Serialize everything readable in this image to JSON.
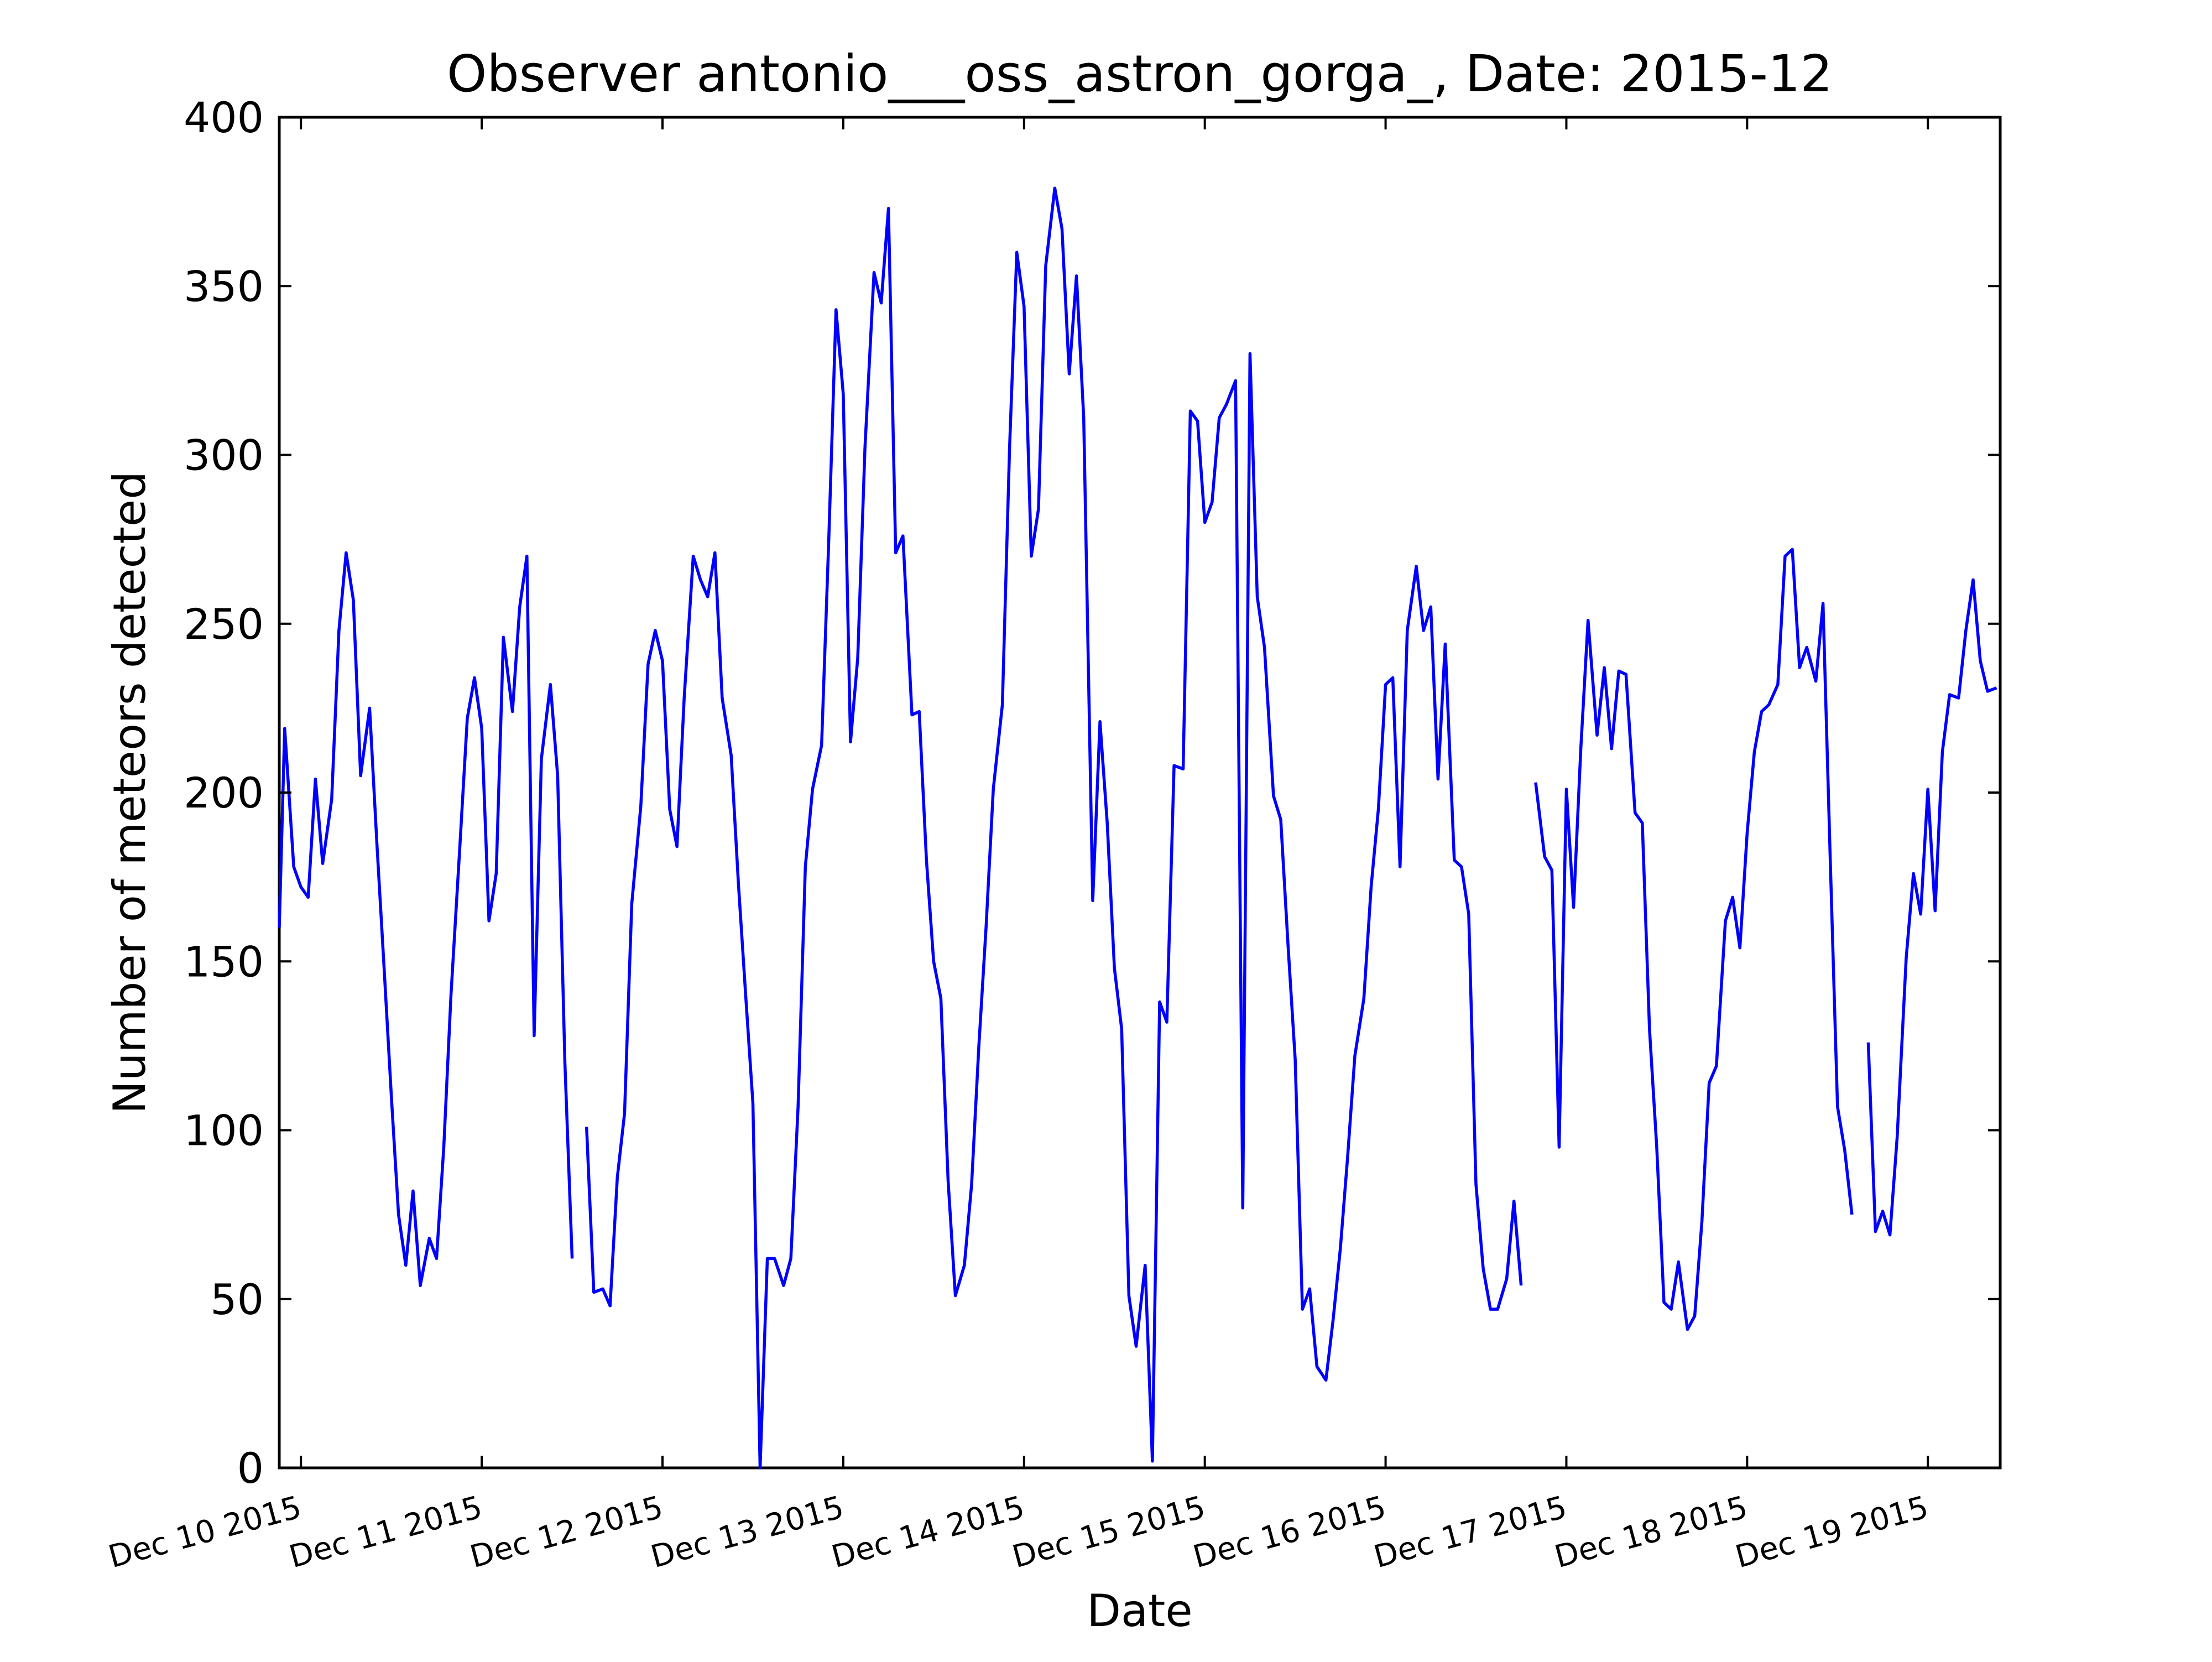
{
  "chart_data": {
    "type": "line",
    "title": "Observer antonio___oss_astron_gorga_, Date: 2015-12",
    "xlabel": "Date",
    "ylabel": "Number of meteors detected",
    "ylim": [
      0,
      400
    ],
    "xlim": [
      -0.12,
      9.4
    ],
    "x_unit": "days after Dec 10 2015 00:00",
    "yticks": [
      0,
      50,
      100,
      150,
      200,
      250,
      300,
      350,
      400
    ],
    "xticks": [
      {
        "value": 0,
        "label": "Dec 10 2015"
      },
      {
        "value": 1,
        "label": "Dec 11 2015"
      },
      {
        "value": 2,
        "label": "Dec 12 2015"
      },
      {
        "value": 3,
        "label": "Dec 13 2015"
      },
      {
        "value": 4,
        "label": "Dec 14 2015"
      },
      {
        "value": 5,
        "label": "Dec 15 2015"
      },
      {
        "value": 6,
        "label": "Dec 16 2015"
      },
      {
        "value": 7,
        "label": "Dec 17 2015"
      },
      {
        "value": 8,
        "label": "Dec 18 2015"
      },
      {
        "value": 9,
        "label": "Dec 19 2015"
      }
    ],
    "grid": false,
    "line_color": "#0000ff",
    "series": [
      {
        "segments": [
          [
            [
              -0.12,
              160
            ],
            [
              -0.09,
              219
            ],
            [
              -0.04,
              178
            ],
            [
              0.0,
              172
            ],
            [
              0.04,
              169
            ],
            [
              0.08,
              204
            ],
            [
              0.12,
              179
            ],
            [
              0.17,
              198
            ],
            [
              0.21,
              248
            ],
            [
              0.25,
              271
            ],
            [
              0.29,
              257
            ],
            [
              0.33,
              205
            ],
            [
              0.38,
              225
            ],
            [
              0.42,
              185
            ],
            [
              0.46,
              148
            ],
            [
              0.5,
              110
            ],
            [
              0.54,
              75
            ],
            [
              0.58,
              60
            ],
            [
              0.62,
              82
            ],
            [
              0.66,
              54
            ],
            [
              0.71,
              68
            ],
            [
              0.75,
              62
            ],
            [
              0.79,
              95
            ],
            [
              0.83,
              140
            ],
            [
              0.88,
              185
            ],
            [
              0.92,
              222
            ],
            [
              0.96,
              234
            ],
            [
              1.0,
              219
            ],
            [
              1.04,
              162
            ],
            [
              1.08,
              176
            ],
            [
              1.12,
              246
            ],
            [
              1.17,
              224
            ],
            [
              1.21,
              255
            ],
            [
              1.25,
              270
            ],
            [
              1.29,
              128
            ],
            [
              1.33,
              210
            ],
            [
              1.38,
              232
            ],
            [
              1.42,
              205
            ],
            [
              1.46,
              120
            ],
            [
              1.5,
              62
            ]
          ],
          [
            [
              1.58,
              101
            ],
            [
              1.62,
              52
            ],
            [
              1.67,
              53
            ],
            [
              1.71,
              48
            ],
            [
              1.75,
              86
            ],
            [
              1.79,
              105
            ],
            [
              1.83,
              167
            ],
            [
              1.88,
              196
            ],
            [
              1.92,
              238
            ],
            [
              1.96,
              248
            ],
            [
              2.0,
              239
            ],
            [
              2.04,
              195
            ],
            [
              2.08,
              184
            ],
            [
              2.12,
              228
            ],
            [
              2.17,
              270
            ],
            [
              2.21,
              263
            ],
            [
              2.25,
              258
            ],
            [
              2.29,
              271
            ],
            [
              2.33,
              228
            ],
            [
              2.38,
              211
            ],
            [
              2.42,
              173
            ],
            [
              2.46,
              140
            ],
            [
              2.5,
              108
            ],
            [
              2.54,
              0
            ],
            [
              2.58,
              62
            ],
            [
              2.62,
              62
            ],
            [
              2.67,
              54
            ],
            [
              2.71,
              62
            ],
            [
              2.75,
              107
            ],
            [
              2.79,
              178
            ],
            [
              2.83,
              201
            ],
            [
              2.88,
              214
            ],
            [
              2.92,
              275
            ],
            [
              2.96,
              343
            ],
            [
              3.0,
              318
            ],
            [
              3.04,
              215
            ],
            [
              3.08,
              240
            ],
            [
              3.12,
              302
            ],
            [
              3.17,
              354
            ],
            [
              3.21,
              345
            ],
            [
              3.25,
              373
            ],
            [
              3.29,
              271
            ],
            [
              3.33,
              276
            ],
            [
              3.38,
              223
            ],
            [
              3.42,
              224
            ],
            [
              3.46,
              180
            ],
            [
              3.5,
              150
            ],
            [
              3.54,
              139
            ],
            [
              3.58,
              85
            ],
            [
              3.62,
              51
            ],
            [
              3.67,
              60
            ],
            [
              3.71,
              84
            ],
            [
              3.75,
              125
            ],
            [
              3.79,
              160
            ],
            [
              3.83,
              201
            ],
            [
              3.88,
              226
            ],
            [
              3.92,
              302
            ],
            [
              3.96,
              360
            ],
            [
              4.0,
              344
            ],
            [
              4.04,
              270
            ],
            [
              4.08,
              284
            ],
            [
              4.12,
              356
            ],
            [
              4.17,
              379
            ],
            [
              4.21,
              367
            ],
            [
              4.25,
              324
            ],
            [
              4.29,
              353
            ],
            [
              4.33,
              311
            ],
            [
              4.38,
              168
            ],
            [
              4.42,
              221
            ],
            [
              4.46,
              191
            ],
            [
              4.5,
              148
            ],
            [
              4.54,
              130
            ],
            [
              4.58,
              51
            ],
            [
              4.62,
              36
            ],
            [
              4.67,
              60
            ],
            [
              4.71,
              2
            ],
            [
              4.75,
              138
            ],
            [
              4.79,
              132
            ],
            [
              4.83,
              208
            ],
            [
              4.88,
              207
            ],
            [
              4.92,
              313
            ],
            [
              4.96,
              310
            ],
            [
              5.0,
              280
            ],
            [
              5.04,
              286
            ],
            [
              5.08,
              311
            ],
            [
              5.12,
              315
            ],
            [
              5.17,
              322
            ],
            [
              5.21,
              77
            ],
            [
              5.25,
              330
            ],
            [
              5.29,
              258
            ],
            [
              5.33,
              243
            ],
            [
              5.38,
              199
            ],
            [
              5.42,
              192
            ],
            [
              5.46,
              155
            ],
            [
              5.5,
              121
            ],
            [
              5.54,
              47
            ],
            [
              5.58,
              53
            ],
            [
              5.62,
              30
            ],
            [
              5.67,
              26
            ],
            [
              5.71,
              44
            ],
            [
              5.75,
              65
            ],
            [
              5.79,
              92
            ],
            [
              5.83,
              122
            ],
            [
              5.88,
              139
            ],
            [
              5.92,
              172
            ],
            [
              5.96,
              195
            ],
            [
              6.0,
              232
            ],
            [
              6.04,
              234
            ],
            [
              6.08,
              178
            ],
            [
              6.12,
              248
            ],
            [
              6.17,
              267
            ],
            [
              6.21,
              248
            ],
            [
              6.25,
              255
            ],
            [
              6.29,
              204
            ],
            [
              6.33,
              244
            ],
            [
              6.38,
              180
            ],
            [
              6.42,
              178
            ],
            [
              6.46,
              164
            ],
            [
              6.5,
              84
            ],
            [
              6.54,
              59
            ],
            [
              6.58,
              47
            ],
            [
              6.62,
              47
            ],
            [
              6.67,
              56
            ],
            [
              6.71,
              79
            ],
            [
              6.75,
              54
            ]
          ],
          [
            [
              6.83,
              203
            ],
            [
              6.88,
              181
            ],
            [
              6.92,
              177
            ],
            [
              6.96,
              95
            ],
            [
              7.0,
              201
            ],
            [
              7.04,
              166
            ],
            [
              7.08,
              213
            ],
            [
              7.12,
              251
            ],
            [
              7.17,
              217
            ],
            [
              7.21,
              237
            ],
            [
              7.25,
              213
            ],
            [
              7.29,
              236
            ],
            [
              7.33,
              235
            ],
            [
              7.38,
              194
            ],
            [
              7.42,
              191
            ],
            [
              7.46,
              130
            ],
            [
              7.5,
              95
            ],
            [
              7.54,
              49
            ],
            [
              7.58,
              47
            ],
            [
              7.62,
              61
            ],
            [
              7.67,
              41
            ],
            [
              7.71,
              45
            ],
            [
              7.75,
              73
            ],
            [
              7.79,
              114
            ],
            [
              7.83,
              119
            ],
            [
              7.88,
              162
            ],
            [
              7.92,
              169
            ],
            [
              7.96,
              154
            ],
            [
              8.0,
              188
            ],
            [
              8.04,
              212
            ],
            [
              8.08,
              224
            ],
            [
              8.12,
              226
            ],
            [
              8.17,
              232
            ],
            [
              8.21,
              270
            ],
            [
              8.25,
              272
            ],
            [
              8.29,
              237
            ],
            [
              8.33,
              243
            ],
            [
              8.38,
              233
            ],
            [
              8.42,
              256
            ],
            [
              8.46,
              180
            ],
            [
              8.5,
              107
            ],
            [
              8.54,
              94
            ],
            [
              8.58,
              75
            ]
          ],
          [
            [
              8.67,
              126
            ],
            [
              8.71,
              70
            ],
            [
              8.75,
              76
            ],
            [
              8.79,
              69
            ],
            [
              8.83,
              98
            ],
            [
              8.88,
              151
            ],
            [
              8.92,
              176
            ],
            [
              8.96,
              164
            ],
            [
              9.0,
              201
            ],
            [
              9.04,
              165
            ],
            [
              9.08,
              212
            ],
            [
              9.12,
              229
            ],
            [
              9.17,
              228
            ],
            [
              9.21,
              248
            ],
            [
              9.25,
              263
            ],
            [
              9.29,
              239
            ],
            [
              9.33,
              230
            ],
            [
              9.38,
              231
            ]
          ]
        ]
      }
    ]
  }
}
